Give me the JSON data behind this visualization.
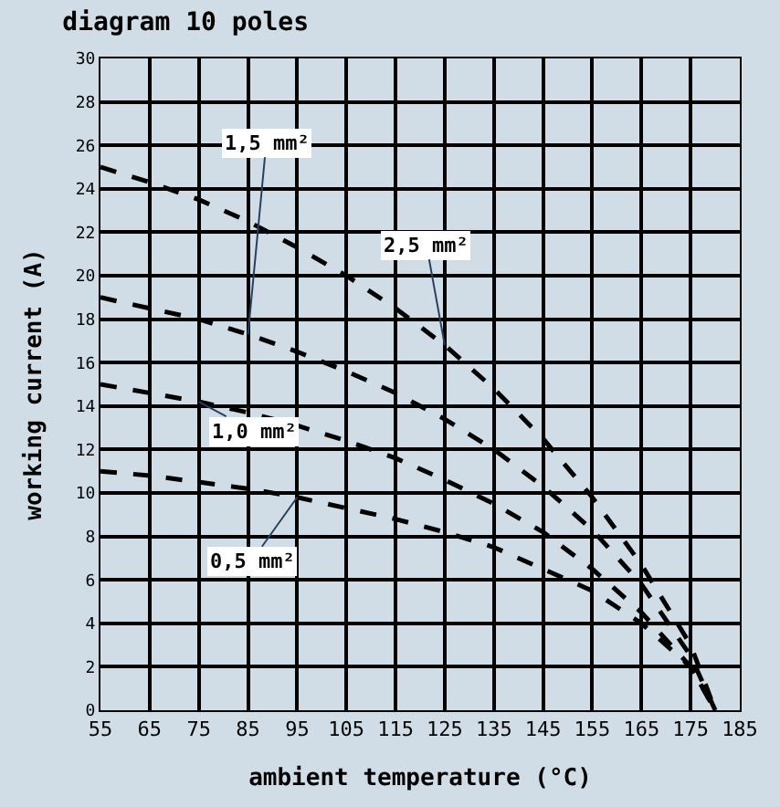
{
  "chart_data": {
    "type": "line",
    "title": "diagram 10 poles",
    "xlabel": "ambient temperature (°C)",
    "ylabel": "working current (A)",
    "x": [
      55,
      65,
      75,
      85,
      95,
      105,
      115,
      125,
      135,
      145,
      155,
      165,
      175,
      180
    ],
    "series": [
      {
        "name": "2,5 mm²",
        "color": "#000000",
        "values": [
          25,
          24.3,
          23.5,
          22.5,
          21.3,
          20,
          18.5,
          16.8,
          14.8,
          12.5,
          9.8,
          6.7,
          3,
          0
        ]
      },
      {
        "name": "1,5 mm²",
        "color": "#000000",
        "values": [
          19,
          18.5,
          18,
          17.3,
          16.5,
          15.6,
          14.6,
          13.4,
          12,
          10.3,
          8.3,
          5.8,
          2.5,
          0
        ]
      },
      {
        "name": "1,0 mm²",
        "color": "#000000",
        "values": [
          15,
          14.6,
          14.2,
          13.7,
          13.1,
          12.4,
          11.6,
          10.6,
          9.5,
          8.2,
          6.5,
          4.5,
          2,
          0
        ]
      },
      {
        "name": "0,5 mm²",
        "color": "#000000",
        "values": [
          11,
          10.8,
          10.5,
          10.2,
          9.8,
          9.3,
          8.8,
          8.2,
          7.5,
          6.5,
          5.5,
          4,
          2,
          0
        ]
      }
    ],
    "xlim": [
      55,
      185
    ],
    "xticks": [
      55,
      65,
      75,
      85,
      95,
      105,
      115,
      125,
      135,
      145,
      155,
      165,
      175,
      185
    ],
    "ylim": [
      0,
      30
    ],
    "yticks": [
      0,
      2,
      4,
      6,
      8,
      10,
      12,
      14,
      16,
      18,
      20,
      22,
      24,
      26,
      28,
      30
    ],
    "grid": true,
    "legend": false,
    "line_style": "dashed",
    "marker": "none"
  }
}
